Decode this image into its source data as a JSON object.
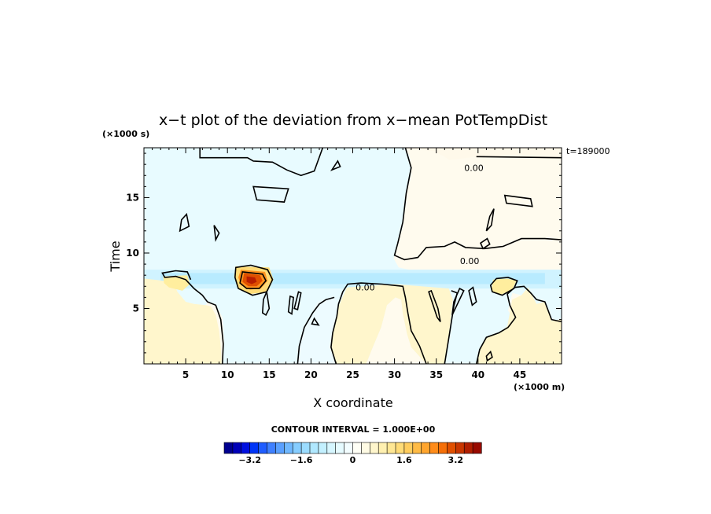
{
  "chart_data": {
    "type": "heatmap",
    "title": "x−t plot of the deviation from x−mean PotTempDist",
    "xlabel": "X coordinate",
    "ylabel": "Time",
    "x_unit": "(×1000 m)",
    "y_unit": "(×1000 s)",
    "xlim": [
      0,
      50
    ],
    "ylim": [
      0,
      19.5
    ],
    "x_ticks": [
      5,
      10,
      15,
      20,
      25,
      30,
      35,
      40,
      45
    ],
    "y_ticks": [
      5,
      10,
      15
    ],
    "time_stamp": "t=189000",
    "contour_labels": [
      {
        "text": "0.00",
        "x": 39.5,
        "y": 17.7
      },
      {
        "text": "0.00",
        "x": 39.0,
        "y": 9.3
      },
      {
        "text": "0.00",
        "x": 26.5,
        "y": 6.9
      }
    ],
    "contour_interval_text": "CONTOUR INTERVAL = 1.000E+00",
    "colorbar": {
      "min": -4.0,
      "max": 4.0,
      "tick_values": [
        -3.2,
        -1.6,
        0,
        1.6,
        3.2
      ],
      "tick_labels": [
        "−3.2",
        "−1.6",
        "0",
        "1.6",
        "3.2"
      ],
      "colors": [
        "#00008f",
        "#0000b8",
        "#0010e0",
        "#0035f8",
        "#1f5dff",
        "#3f80ff",
        "#5aa0ff",
        "#70b8ff",
        "#86cdff",
        "#9bdcff",
        "#b0e8ff",
        "#c3f0ff",
        "#d6f6ff",
        "#e6fbff",
        "#f3fdff",
        "#fffff6",
        "#fffbe4",
        "#fff6cc",
        "#fff0b0",
        "#ffe794",
        "#ffdc78",
        "#ffcd5e",
        "#ffbb45",
        "#ffa52e",
        "#ff8c1a",
        "#f56f08",
        "#e05000",
        "#c83600",
        "#b01e00",
        "#980a00"
      ]
    }
  }
}
